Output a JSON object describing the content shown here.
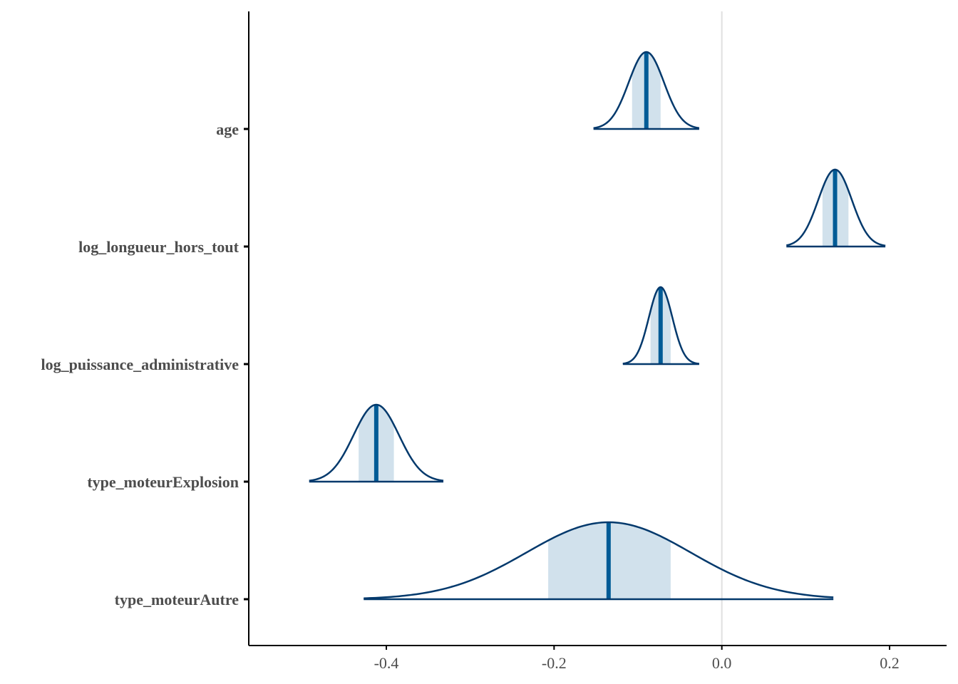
{
  "chart_data": {
    "type": "area",
    "subtype": "posterior-density-ridges",
    "xlim": [
      -0.57,
      0.27
    ],
    "xticks": [
      -0.4,
      -0.2,
      0.0,
      0.2
    ],
    "xtick_labels": [
      "-0.4",
      "-0.2",
      "0.0",
      "0.2"
    ],
    "reference_line_x": 0.0,
    "grid": false,
    "colors": {
      "outline": "#03396c",
      "median": "#005b96",
      "interval_fill": "#d1e1ec",
      "reference_line": "#e0e0e0",
      "axis": "#000000"
    },
    "series": [
      {
        "name": "age",
        "median": -0.09,
        "inner": [
          -0.107,
          -0.073
        ],
        "outer": [
          -0.153,
          -0.027
        ],
        "sd": 0.021
      },
      {
        "name": "log_longueur_hors_tout",
        "median": 0.135,
        "inner": [
          0.12,
          0.151
        ],
        "outer": [
          0.077,
          0.195
        ],
        "sd": 0.02
      },
      {
        "name": "log_puissance_administrative",
        "median": -0.073,
        "inner": [
          -0.085,
          -0.061
        ],
        "outer": [
          -0.118,
          -0.027
        ],
        "sd": 0.014
      },
      {
        "name": "type_moteurExplosion",
        "median": -0.412,
        "inner": [
          -0.433,
          -0.391
        ],
        "outer": [
          -0.492,
          -0.332
        ],
        "sd": 0.027
      },
      {
        "name": "type_moteurAutre",
        "median": -0.135,
        "inner": [
          -0.207,
          -0.061
        ],
        "outer": [
          -0.427,
          0.133
        ],
        "sd": 0.098
      }
    ]
  }
}
